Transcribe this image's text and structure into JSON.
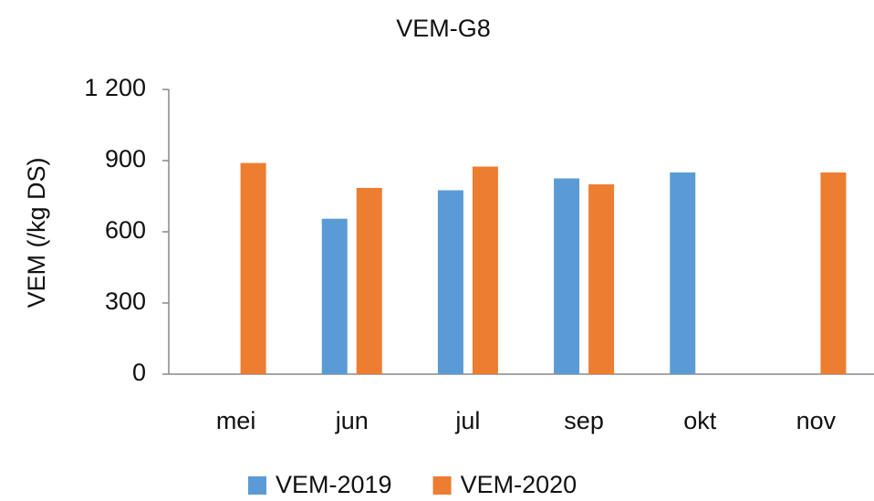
{
  "chart_data": {
    "type": "bar",
    "title": "VEM-G8",
    "y_label": "VEM (/kg DS)",
    "categories": [
      "mei",
      "jun",
      "jul",
      "sep",
      "okt",
      "nov"
    ],
    "series": [
      {
        "name": "VEM-2019",
        "color": "#5b9bd5",
        "values": [
          null,
          655,
          775,
          825,
          850,
          null
        ]
      },
      {
        "name": "VEM-2020",
        "color": "#ed7d31",
        "values": [
          890,
          785,
          875,
          800,
          null,
          850
        ]
      }
    ],
    "ylim": [
      0,
      1200
    ],
    "yticks": [
      0,
      300,
      600,
      900,
      {
        "value": 1200,
        "label": "1 200"
      }
    ],
    "legend": "bottom"
  }
}
